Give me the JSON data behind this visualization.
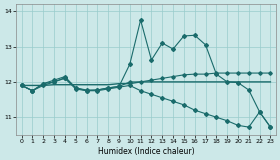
{
  "xlabel": "Humidex (Indice chaleur)",
  "bg_color": "#cce8e8",
  "grid_color": "#99cccc",
  "line_color": "#1a6b6b",
  "xlim": [
    -0.5,
    23.5
  ],
  "ylim": [
    10.5,
    14.2
  ],
  "yticks": [
    11,
    12,
    13,
    14
  ],
  "xticks": [
    0,
    1,
    2,
    3,
    4,
    5,
    6,
    7,
    8,
    9,
    10,
    11,
    12,
    13,
    14,
    15,
    16,
    17,
    18,
    19,
    20,
    21,
    22,
    23
  ],
  "series": {
    "line1_x": [
      0,
      1,
      2,
      3,
      4,
      5,
      6,
      7,
      8,
      9,
      10,
      11,
      12,
      13,
      14,
      15,
      16,
      17,
      18,
      19,
      20,
      21,
      22,
      23
    ],
    "line1_y": [
      11.9,
      11.75,
      11.95,
      12.05,
      12.15,
      11.83,
      11.77,
      11.77,
      11.83,
      11.87,
      12.5,
      13.75,
      12.62,
      13.1,
      12.93,
      13.3,
      13.32,
      13.05,
      12.22,
      12.0,
      11.98,
      11.77,
      11.15,
      10.72
    ],
    "line2_x": [
      0,
      1,
      2,
      3,
      4,
      5,
      6,
      7,
      8,
      9,
      10,
      11,
      12,
      13,
      14,
      15,
      16,
      17,
      18,
      19,
      20,
      21,
      22,
      23
    ],
    "line2_y": [
      11.9,
      11.9,
      11.9,
      11.92,
      11.92,
      11.92,
      11.92,
      11.92,
      11.92,
      11.95,
      11.95,
      12.0,
      12.0,
      12.0,
      12.0,
      12.0,
      12.0,
      12.0,
      12.0,
      12.0,
      12.0,
      12.0,
      12.0,
      12.0
    ],
    "line3_x": [
      0,
      1,
      2,
      3,
      4,
      5,
      6,
      7,
      8,
      9,
      10,
      11,
      12,
      13,
      14,
      15,
      16,
      17,
      18,
      19,
      20,
      21,
      22,
      23
    ],
    "line3_y": [
      11.9,
      11.75,
      11.95,
      12.0,
      12.12,
      11.83,
      11.75,
      11.77,
      11.83,
      11.87,
      12.0,
      12.0,
      12.05,
      12.1,
      12.15,
      12.2,
      12.22,
      12.22,
      12.25,
      12.25,
      12.25,
      12.25,
      12.25,
      12.25
    ],
    "line4_x": [
      0,
      1,
      2,
      3,
      4,
      5,
      6,
      7,
      8,
      9,
      10,
      11,
      12,
      13,
      14,
      15,
      16,
      17,
      18,
      19,
      20,
      21,
      22,
      23
    ],
    "line4_y": [
      11.9,
      11.75,
      11.9,
      12.0,
      12.1,
      11.8,
      11.75,
      11.75,
      11.8,
      11.85,
      11.9,
      11.75,
      11.65,
      11.55,
      11.45,
      11.35,
      11.2,
      11.1,
      11.0,
      10.9,
      10.77,
      10.72,
      11.15,
      10.72
    ]
  }
}
